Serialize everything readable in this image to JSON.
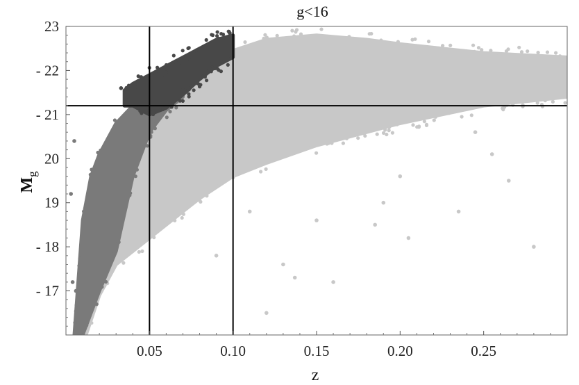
{
  "chart_data": {
    "type": "scatter",
    "title": "g<16",
    "xlabel": "z",
    "ylabel_main": "M",
    "ylabel_sub": "g",
    "xlim": [
      0.0,
      0.3
    ],
    "ylim": [
      16.0,
      23.0
    ],
    "y_axis_reversed": true,
    "y_tick_labels": [
      "- 17",
      "- 18",
      "19",
      "20",
      "- 21",
      "- 22",
      "23"
    ],
    "y_tick_values": [
      17,
      18,
      19,
      20,
      21,
      22,
      23
    ],
    "x_tick_labels": [
      "0.05",
      "0.10",
      "0.15",
      "0.20",
      "0.25"
    ],
    "x_tick_values": [
      0.05,
      0.1,
      0.15,
      0.2,
      0.25
    ],
    "reference_lines": {
      "vertical_z": [
        0.05,
        0.1
      ],
      "horizontal_mg": 21.2
    },
    "series": [
      {
        "color": "#c8c8c8",
        "envelope": {
          "z": [
            0.012,
            0.02,
            0.03,
            0.04,
            0.05,
            0.06,
            0.08,
            0.1,
            0.12,
            0.15,
            0.18,
            0.2,
            0.25,
            0.3
          ],
          "bright_edge": [
            17.0,
            18.4,
            19.3,
            20.1,
            20.7,
            21.15,
            21.8,
            22.45,
            22.7,
            22.8,
            22.7,
            22.6,
            22.4,
            22.3
          ],
          "faint_edge": [
            16.0,
            16.9,
            17.6,
            17.9,
            18.2,
            18.5,
            19.1,
            19.6,
            19.9,
            20.3,
            20.6,
            20.8,
            21.2,
            21.4
          ]
        },
        "outliers": [
          [
            0.11,
            18.8
          ],
          [
            0.13,
            17.6
          ],
          [
            0.137,
            17.3
          ],
          [
            0.16,
            17.2
          ],
          [
            0.185,
            18.5
          ],
          [
            0.19,
            19.0
          ],
          [
            0.205,
            18.2
          ],
          [
            0.235,
            18.8
          ],
          [
            0.265,
            19.5
          ],
          [
            0.28,
            18.0
          ],
          [
            0.255,
            20.1
          ],
          [
            0.245,
            20.6
          ],
          [
            0.12,
            16.5
          ],
          [
            0.15,
            18.6
          ],
          [
            0.09,
            17.8
          ],
          [
            0.2,
            19.6
          ]
        ]
      },
      {
        "color": "#7a7a7a",
        "envelope": {
          "z": [
            0.005,
            0.01,
            0.015,
            0.02,
            0.03,
            0.04,
            0.05,
            0.06,
            0.07
          ],
          "bright_edge": [
            16.0,
            18.6,
            19.6,
            20.1,
            20.8,
            21.2,
            21.4,
            21.5,
            21.5
          ],
          "faint_edge": [
            16.0,
            16.0,
            16.5,
            17.0,
            17.9,
            19.6,
            20.6,
            21.1,
            21.4
          ]
        },
        "outliers": [
          [
            0.003,
            19.2
          ],
          [
            0.005,
            20.4
          ],
          [
            0.004,
            17.2
          ],
          [
            0.006,
            17.0
          ]
        ]
      },
      {
        "color": "#484848",
        "envelope": {
          "z": [
            0.035,
            0.04,
            0.05,
            0.06,
            0.07,
            0.08,
            0.09,
            0.1
          ],
          "bright_edge": [
            21.55,
            21.7,
            21.9,
            22.1,
            22.3,
            22.5,
            22.7,
            22.8
          ],
          "faint_edge": [
            21.2,
            21.2,
            21.0,
            21.15,
            21.45,
            21.8,
            22.1,
            22.3
          ]
        },
        "outliers": [
          [
            0.033,
            21.6
          ],
          [
            0.045,
            21.85
          ],
          [
            0.098,
            22.85
          ]
        ]
      }
    ]
  }
}
